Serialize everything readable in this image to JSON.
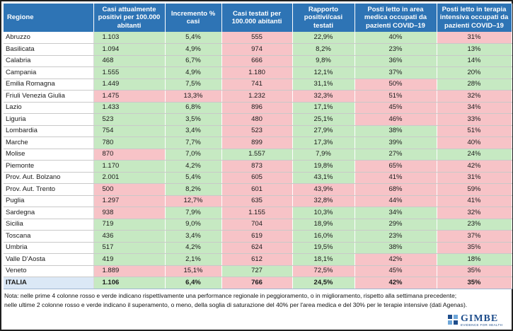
{
  "headers": [
    "Regione",
    "Casi attualmente positivi per 100.000 abitanti",
    "Incremento % casi",
    "Casi testati per 100.000 abitanti",
    "Rapporto positivi/casi testati",
    "Posti letto in area medica occupati da pazienti COVID–19",
    "Posti letto in terapia intensiva occupati da pazienti COVID–19"
  ],
  "colors": {
    "header": "#2e74b5",
    "green": "#c6e9c2",
    "red": "#f7c3c7",
    "total": "#dbe8f6"
  },
  "rows": [
    {
      "name": "Abruzzo",
      "v": [
        "1.103",
        "5,4%",
        "555",
        "22,9%",
        "40%",
        "31%"
      ],
      "c": [
        "g",
        "g",
        "r",
        "g",
        "g",
        "r"
      ]
    },
    {
      "name": "Basilicata",
      "v": [
        "1.094",
        "4,9%",
        "974",
        "8,2%",
        "23%",
        "13%"
      ],
      "c": [
        "g",
        "g",
        "r",
        "g",
        "g",
        "g"
      ]
    },
    {
      "name": "Calabria",
      "v": [
        "468",
        "6,7%",
        "666",
        "9,8%",
        "36%",
        "14%"
      ],
      "c": [
        "g",
        "g",
        "r",
        "g",
        "g",
        "g"
      ]
    },
    {
      "name": "Campania",
      "v": [
        "1.555",
        "4,9%",
        "1.180",
        "12,1%",
        "37%",
        "20%"
      ],
      "c": [
        "g",
        "g",
        "r",
        "g",
        "g",
        "g"
      ]
    },
    {
      "name": "Emilia Romagna",
      "v": [
        "1.449",
        "7,5%",
        "741",
        "31,1%",
        "50%",
        "28%"
      ],
      "c": [
        "g",
        "g",
        "r",
        "g",
        "r",
        "g"
      ]
    },
    {
      "name": "Friuli Venezia Giulia",
      "v": [
        "1.475",
        "13,3%",
        "1.232",
        "32,3%",
        "51%",
        "32%"
      ],
      "c": [
        "r",
        "r",
        "r",
        "r",
        "r",
        "r"
      ]
    },
    {
      "name": "Lazio",
      "v": [
        "1.433",
        "6,8%",
        "896",
        "17,1%",
        "45%",
        "34%"
      ],
      "c": [
        "g",
        "g",
        "r",
        "g",
        "r",
        "r"
      ]
    },
    {
      "name": "Liguria",
      "v": [
        "523",
        "3,5%",
        "480",
        "25,1%",
        "46%",
        "33%"
      ],
      "c": [
        "g",
        "g",
        "r",
        "g",
        "r",
        "r"
      ]
    },
    {
      "name": "Lombardia",
      "v": [
        "754",
        "3,4%",
        "523",
        "27,9%",
        "38%",
        "51%"
      ],
      "c": [
        "g",
        "g",
        "r",
        "g",
        "g",
        "r"
      ]
    },
    {
      "name": "Marche",
      "v": [
        "780",
        "7,7%",
        "899",
        "17,3%",
        "39%",
        "40%"
      ],
      "c": [
        "g",
        "g",
        "r",
        "g",
        "g",
        "r"
      ]
    },
    {
      "name": "Molise",
      "v": [
        "870",
        "7,0%",
        "1.557",
        "7,9%",
        "27%",
        "24%"
      ],
      "c": [
        "r",
        "g",
        "g",
        "g",
        "g",
        "g"
      ]
    },
    {
      "name": "Piemonte",
      "v": [
        "1.170",
        "4,2%",
        "873",
        "19,8%",
        "65%",
        "42%"
      ],
      "c": [
        "g",
        "g",
        "r",
        "g",
        "r",
        "r"
      ]
    },
    {
      "name": "Prov. Aut. Bolzano",
      "v": [
        "2.001",
        "5,4%",
        "605",
        "43,1%",
        "41%",
        "31%"
      ],
      "c": [
        "g",
        "g",
        "r",
        "g",
        "r",
        "r"
      ]
    },
    {
      "name": "Prov. Aut. Trento",
      "v": [
        "500",
        "8,2%",
        "601",
        "43,9%",
        "68%",
        "59%"
      ],
      "c": [
        "r",
        "g",
        "r",
        "r",
        "r",
        "r"
      ]
    },
    {
      "name": "Puglia",
      "v": [
        "1.297",
        "12,7%",
        "635",
        "32,8%",
        "44%",
        "41%"
      ],
      "c": [
        "r",
        "r",
        "r",
        "r",
        "r",
        "r"
      ]
    },
    {
      "name": "Sardegna",
      "v": [
        "938",
        "7,9%",
        "1.155",
        "10,3%",
        "34%",
        "32%"
      ],
      "c": [
        "r",
        "g",
        "r",
        "g",
        "g",
        "r"
      ]
    },
    {
      "name": "Sicilia",
      "v": [
        "719",
        "9,0%",
        "704",
        "18,9%",
        "29%",
        "23%"
      ],
      "c": [
        "g",
        "g",
        "r",
        "g",
        "g",
        "g"
      ]
    },
    {
      "name": "Toscana",
      "v": [
        "436",
        "3,4%",
        "619",
        "16,0%",
        "23%",
        "37%"
      ],
      "c": [
        "g",
        "g",
        "r",
        "g",
        "g",
        "r"
      ]
    },
    {
      "name": "Umbria",
      "v": [
        "517",
        "4,2%",
        "624",
        "19,5%",
        "38%",
        "35%"
      ],
      "c": [
        "g",
        "g",
        "r",
        "g",
        "g",
        "r"
      ]
    },
    {
      "name": "Valle D'Aosta",
      "v": [
        "419",
        "2,1%",
        "612",
        "18,1%",
        "42%",
        "18%"
      ],
      "c": [
        "g",
        "g",
        "r",
        "g",
        "r",
        "g"
      ]
    },
    {
      "name": "Veneto",
      "v": [
        "1.889",
        "15,1%",
        "727",
        "72,5%",
        "45%",
        "35%"
      ],
      "c": [
        "r",
        "r",
        "g",
        "r",
        "r",
        "r"
      ]
    }
  ],
  "total": {
    "name": "ITALIA",
    "v": [
      "1.106",
      "6,4%",
      "766",
      "24,5%",
      "42%",
      "35%"
    ],
    "c": [
      "g",
      "g",
      "r",
      "g",
      "r",
      "r"
    ]
  },
  "note_line1": "Nota: nelle prime 4 colonne rosso e verde indicano rispettivamente una performance regionale in peggioramento, o in miglioramento, rispetto alla settimana precedente;",
  "note_line2": "nelle ultime 2 colonne rosso e verde indicano il superamento, o meno, della soglia di saturazione del 40% per l'area medica e del 30% per le terapie intensive (dati Agenas).",
  "logo": {
    "name": "GIMBE",
    "tagline": "EVIDENCE FOR HEALTH"
  }
}
